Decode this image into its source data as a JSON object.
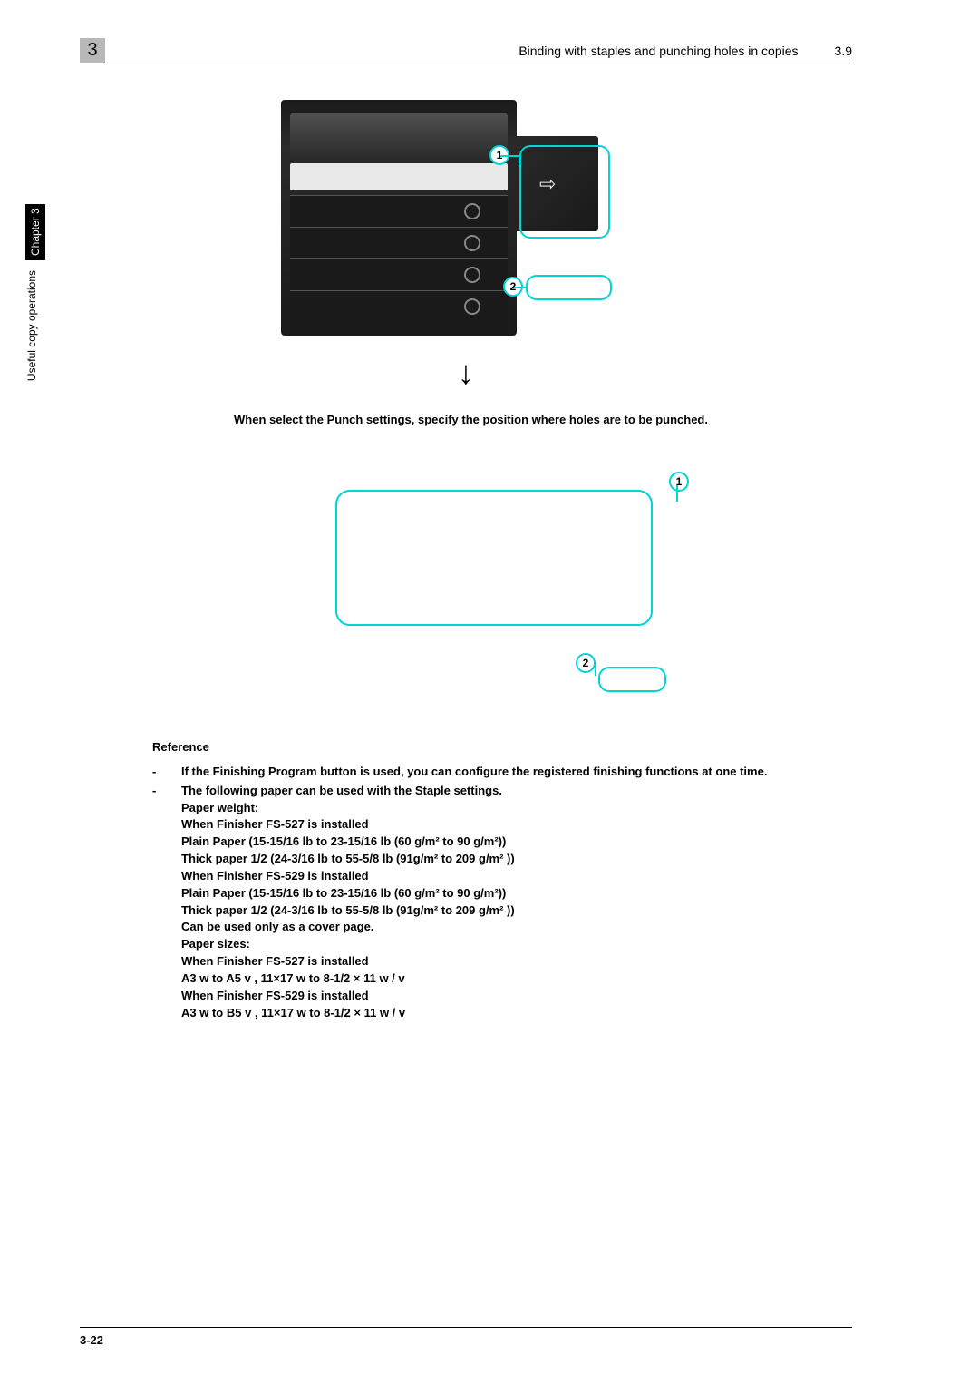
{
  "header": {
    "chapter_number": "3",
    "title": "Binding with staples and punching holes in copies",
    "section": "3.9"
  },
  "side_tab": {
    "chapter_label": "Chapter 3",
    "section_label": "Useful copy operations"
  },
  "diagram": {
    "callout_1": "1",
    "callout_2": "2",
    "arrow": "↓",
    "callout_colors": {
      "border": "#00d4d4",
      "text": "#000000"
    }
  },
  "instruction": "When select the Punch settings, specify the position where holes are to be punched.",
  "panel": {
    "callout_1": "1",
    "callout_2": "2"
  },
  "reference": {
    "title": "Reference",
    "item1": "If the Finishing Program button is used, you can configure the registered finishing functions at one time.",
    "item2_intro": "The following paper can be used with the Staple settings.",
    "paper_weight_label": "Paper weight:",
    "fs527_label": "When Finisher FS-527 is installed",
    "plain_paper": "Plain Paper (15-15/16 lb to 23-15/16 lb (60 g/m² to 90 g/m²))",
    "thick_paper": "Thick paper 1/2 (24-3/16 lb to 55-5/8 lb (91g/m² to 209 g/m² ))",
    "fs529_label": "When Finisher FS-529 is installed",
    "plain_paper2": "Plain Paper (15-15/16 lb to 23-15/16 lb (60 g/m² to 90 g/m²))",
    "thick_paper2": "Thick paper 1/2 (24-3/16 lb to 55-5/8 lb (91g/m² to 209 g/m² ))",
    "cover_note": "Can be used only as a cover page.",
    "paper_sizes_label": "Paper sizes:",
    "fs527_label2": "When Finisher FS-527 is installed",
    "size527": "A3 w  to A5 v , 11×17 w    to 8-1/2 × 11  w / v",
    "fs529_label2": "When Finisher FS-529 is installed",
    "size529": "A3 w  to B5 v , 11×17 w    to 8-1/2 × 11  w / v"
  },
  "footer": {
    "page_number": "3-22"
  }
}
